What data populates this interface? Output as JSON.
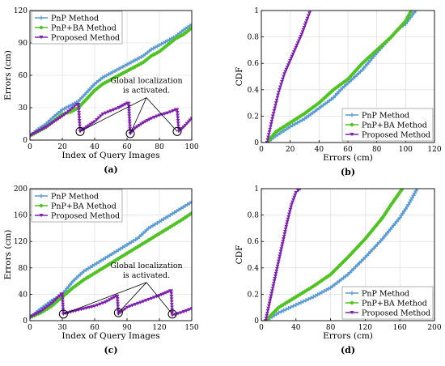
{
  "colors": {
    "pnp": "#5b9bd5",
    "pnp_ba": "#4fc421",
    "proposed": "#7f1fb1",
    "axis": "#000000",
    "grid": "#d9d9d9",
    "annotation": "#000000"
  },
  "chart_data": [
    {
      "id": "a",
      "caption": "(a)",
      "type": "line",
      "xlabel": "Index of Query Images",
      "ylabel": "Errors (cm)",
      "xlim": [
        0,
        100
      ],
      "ylim": [
        0,
        120
      ],
      "xticks": [
        0,
        20,
        40,
        60,
        80,
        100
      ],
      "yticks": [
        0,
        30,
        60,
        90,
        120
      ],
      "legend": "top-left",
      "annotation": {
        "lines": [
          "Global localization",
          "is activated."
        ],
        "targets": [
          [
            31,
            8
          ],
          [
            62,
            6
          ],
          [
            91,
            8
          ]
        ]
      },
      "series": [
        {
          "name": "PnP Method",
          "key": "pnp",
          "x": [
            0,
            5,
            10,
            15,
            20,
            25,
            30,
            35,
            40,
            45,
            50,
            55,
            60,
            65,
            70,
            75,
            80,
            85,
            90,
            95,
            100
          ],
          "y": [
            4,
            10,
            15,
            22,
            28,
            32,
            36,
            44,
            52,
            58,
            62,
            66,
            70,
            74,
            78,
            84,
            88,
            92,
            96,
            102,
            107
          ]
        },
        {
          "name": "PnP+BA Method",
          "key": "pnp_ba",
          "x": [
            0,
            5,
            10,
            15,
            20,
            25,
            30,
            35,
            40,
            45,
            50,
            55,
            60,
            65,
            70,
            75,
            80,
            85,
            90,
            95,
            100
          ],
          "y": [
            4,
            8,
            12,
            18,
            24,
            26,
            30,
            38,
            46,
            52,
            56,
            60,
            64,
            68,
            72,
            78,
            82,
            88,
            94,
            98,
            104
          ]
        },
        {
          "name": "Proposed Method",
          "key": "proposed",
          "x": [
            0,
            5,
            10,
            15,
            20,
            25,
            29,
            30,
            31,
            35,
            40,
            45,
            50,
            55,
            60,
            61,
            62,
            65,
            70,
            75,
            80,
            85,
            90,
            91,
            92,
            95,
            100
          ],
          "y": [
            4,
            8,
            12,
            17,
            22,
            28,
            33,
            33,
            8,
            12,
            17,
            24,
            27,
            30,
            34,
            34,
            6,
            11,
            16,
            20,
            23,
            25,
            28,
            28,
            8,
            12,
            20
          ]
        }
      ]
    },
    {
      "id": "b",
      "caption": "(b)",
      "type": "line",
      "xlabel": "Errors (cm)",
      "ylabel": "CDF",
      "xlim": [
        0,
        120
      ],
      "ylim": [
        0,
        1
      ],
      "xticks": [
        0,
        20,
        40,
        60,
        80,
        100,
        120
      ],
      "yticks": [
        0,
        0.2,
        0.4,
        0.6,
        0.8,
        1
      ],
      "legend": "bottom-right",
      "series": [
        {
          "name": "PnP Method",
          "key": "pnp",
          "x": [
            4,
            10,
            20,
            30,
            40,
            50,
            55,
            60,
            70,
            80,
            90,
            95,
            100,
            107
          ],
          "y": [
            0,
            0.05,
            0.12,
            0.18,
            0.26,
            0.34,
            0.4,
            0.45,
            0.55,
            0.68,
            0.8,
            0.86,
            0.9,
            1
          ]
        },
        {
          "name": "PnP+BA Method",
          "key": "pnp_ba",
          "x": [
            4,
            10,
            20,
            30,
            40,
            50,
            60,
            70,
            80,
            90,
            100,
            104
          ],
          "y": [
            0,
            0.08,
            0.15,
            0.22,
            0.3,
            0.4,
            0.48,
            0.6,
            0.7,
            0.8,
            0.92,
            1
          ]
        },
        {
          "name": "Proposed Method",
          "key": "proposed",
          "x": [
            4,
            8,
            12,
            16,
            20,
            24,
            28,
            32,
            34
          ],
          "y": [
            0,
            0.2,
            0.38,
            0.52,
            0.62,
            0.72,
            0.82,
            0.94,
            1
          ]
        }
      ]
    },
    {
      "id": "c",
      "caption": "(c)",
      "type": "line",
      "xlabel": "Index of Query Images",
      "ylabel": "Errors (cm)",
      "xlim": [
        0,
        150
      ],
      "ylim": [
        0,
        200
      ],
      "xticks": [
        0,
        30,
        60,
        90,
        120,
        150
      ],
      "yticks": [
        0,
        40,
        80,
        120,
        160,
        200
      ],
      "legend": "top-left",
      "annotation": {
        "lines": [
          "Global localization",
          "is activated."
        ],
        "targets": [
          [
            31,
            10
          ],
          [
            82,
            12
          ],
          [
            132,
            10
          ]
        ]
      },
      "series": [
        {
          "name": "PnP Method",
          "key": "pnp",
          "x": [
            0,
            10,
            20,
            30,
            40,
            50,
            60,
            70,
            80,
            90,
            100,
            110,
            120,
            130,
            140,
            150
          ],
          "y": [
            5,
            18,
            30,
            40,
            60,
            75,
            85,
            95,
            105,
            115,
            125,
            140,
            150,
            160,
            170,
            180
          ]
        },
        {
          "name": "PnP+BA Method",
          "key": "pnp_ba",
          "x": [
            0,
            10,
            20,
            30,
            40,
            50,
            60,
            70,
            80,
            90,
            100,
            110,
            120,
            130,
            140,
            150
          ],
          "y": [
            5,
            12,
            22,
            36,
            50,
            62,
            72,
            82,
            92,
            102,
            112,
            122,
            132,
            142,
            152,
            163
          ]
        },
        {
          "name": "Proposed Method",
          "key": "proposed",
          "x": [
            0,
            10,
            20,
            29,
            30,
            31,
            40,
            50,
            60,
            70,
            80,
            81,
            82,
            90,
            100,
            110,
            120,
            130,
            131,
            132,
            140,
            150
          ],
          "y": [
            5,
            14,
            26,
            40,
            40,
            10,
            14,
            18,
            22,
            28,
            37,
            37,
            10,
            20,
            26,
            32,
            38,
            45,
            45,
            8,
            12,
            18
          ]
        }
      ]
    },
    {
      "id": "d",
      "caption": "(d)",
      "type": "line",
      "xlabel": "Errors (cm)",
      "ylabel": "CDF",
      "xlim": [
        0,
        200
      ],
      "ylim": [
        0,
        1
      ],
      "xticks": [
        0,
        40,
        80,
        120,
        160,
        200
      ],
      "yticks": [
        0,
        0.2,
        0.4,
        0.6,
        0.8,
        1
      ],
      "legend": "bottom-right",
      "series": [
        {
          "name": "PnP Method",
          "key": "pnp",
          "x": [
            5,
            20,
            40,
            60,
            80,
            100,
            120,
            140,
            160,
            170,
            180
          ],
          "y": [
            0,
            0.06,
            0.12,
            0.18,
            0.25,
            0.35,
            0.48,
            0.62,
            0.78,
            0.88,
            1
          ]
        },
        {
          "name": "PnP+BA Method",
          "key": "pnp_ba",
          "x": [
            5,
            20,
            40,
            60,
            80,
            100,
            120,
            140,
            150,
            163
          ],
          "y": [
            0,
            0.1,
            0.18,
            0.26,
            0.35,
            0.48,
            0.62,
            0.78,
            0.88,
            1
          ]
        },
        {
          "name": "Proposed Method",
          "key": "proposed",
          "x": [
            5,
            10,
            15,
            20,
            25,
            30,
            35,
            40,
            45
          ],
          "y": [
            0,
            0.15,
            0.3,
            0.45,
            0.6,
            0.75,
            0.88,
            0.97,
            1
          ]
        }
      ]
    }
  ]
}
